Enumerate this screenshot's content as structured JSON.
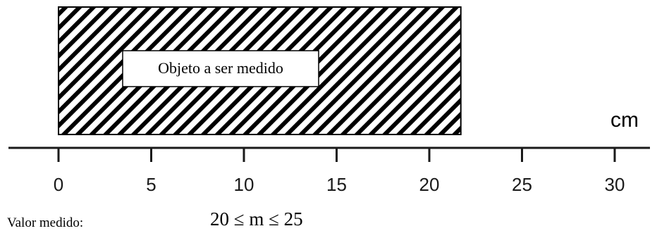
{
  "object": {
    "label": "Objeto a ser medido",
    "start_cm": 0,
    "end_cm": 21.7
  },
  "ruler": {
    "unit": "cm",
    "min_cm": 0,
    "max_cm": 30,
    "ticks": [
      {
        "value": 0,
        "label": "0"
      },
      {
        "value": 5,
        "label": "5"
      },
      {
        "value": 10,
        "label": "10"
      },
      {
        "value": 15,
        "label": "15"
      },
      {
        "value": 20,
        "label": "20"
      },
      {
        "value": 25,
        "label": "25"
      },
      {
        "value": 30,
        "label": "30"
      }
    ]
  },
  "result": {
    "label": "Valor medido:",
    "value": "20 ≤ m ≤ 25"
  },
  "colors": {
    "ink": "#000000",
    "background": "#ffffff"
  }
}
